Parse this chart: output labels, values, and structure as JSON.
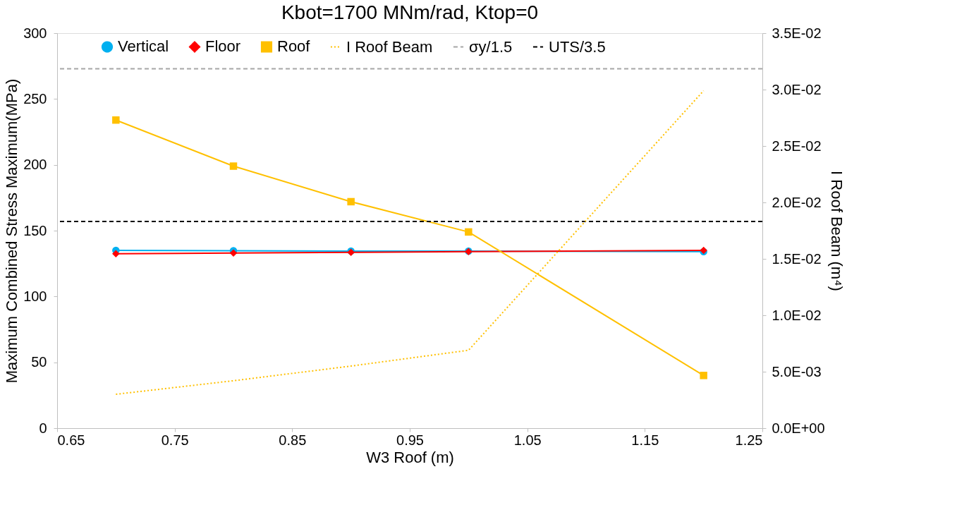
{
  "chart_data": {
    "type": "line",
    "title": "Kbot=1700 MNm/rad, Ktop=0",
    "xlabel": "W3 Roof (m)",
    "ylabel": "Maximum  Combined  Stress Maximum(MPa)",
    "y2label": "I Roof Beam (m⁴)",
    "x": [
      0.7,
      0.8,
      0.9,
      1.0,
      1.2
    ],
    "series": [
      {
        "name": "Vertical",
        "color": "#00b0f0",
        "marker": "circle",
        "values": [
          135,
          134.7,
          134.5,
          134.5,
          134
        ]
      },
      {
        "name": "Floor",
        "color": "#ff0000",
        "marker": "diamond",
        "values": [
          132.5,
          133,
          133.5,
          134,
          135
        ]
      },
      {
        "name": "Roof",
        "color": "#ffc000",
        "marker": "square",
        "values": [
          234,
          199,
          172,
          149,
          40
        ]
      },
      {
        "name": "I Roof Beam",
        "color": "#ffc000",
        "marker": "none",
        "line_style": "dotted",
        "axis": "y2",
        "values": [
          0.003,
          0.0042,
          0.0055,
          0.0069,
          0.0299
        ]
      }
    ],
    "ref_lines": [
      {
        "axis": "y",
        "value": 273,
        "label": "σy/1.5",
        "color": "#a6a6a6",
        "line_style": "dashed"
      },
      {
        "axis": "y",
        "value": 157,
        "label": "UTS/3.5",
        "color": "#000000",
        "line_style": "dashed"
      }
    ],
    "xlim": [
      0.65,
      1.25
    ],
    "xticks": [
      0.65,
      0.75,
      0.85,
      0.95,
      1.05,
      1.15,
      1.25
    ],
    "ylim": [
      0,
      300
    ],
    "yticks": [
      0,
      50,
      100,
      150,
      200,
      250,
      300
    ],
    "y2lim": [
      0,
      0.035
    ],
    "y2ticks": [
      {
        "value": 0,
        "label": "0.0E+00"
      },
      {
        "value": 0.005,
        "label": "5.0E-03"
      },
      {
        "value": 0.01,
        "label": "1.0E-02"
      },
      {
        "value": 0.015,
        "label": "1.5E-02"
      },
      {
        "value": 0.02,
        "label": "2.0E-02"
      },
      {
        "value": 0.025,
        "label": "2.5E-02"
      },
      {
        "value": 0.03,
        "label": "3.0E-02"
      },
      {
        "value": 0.035,
        "label": "3.5E-02"
      }
    ],
    "grid": false,
    "legend": "top"
  }
}
